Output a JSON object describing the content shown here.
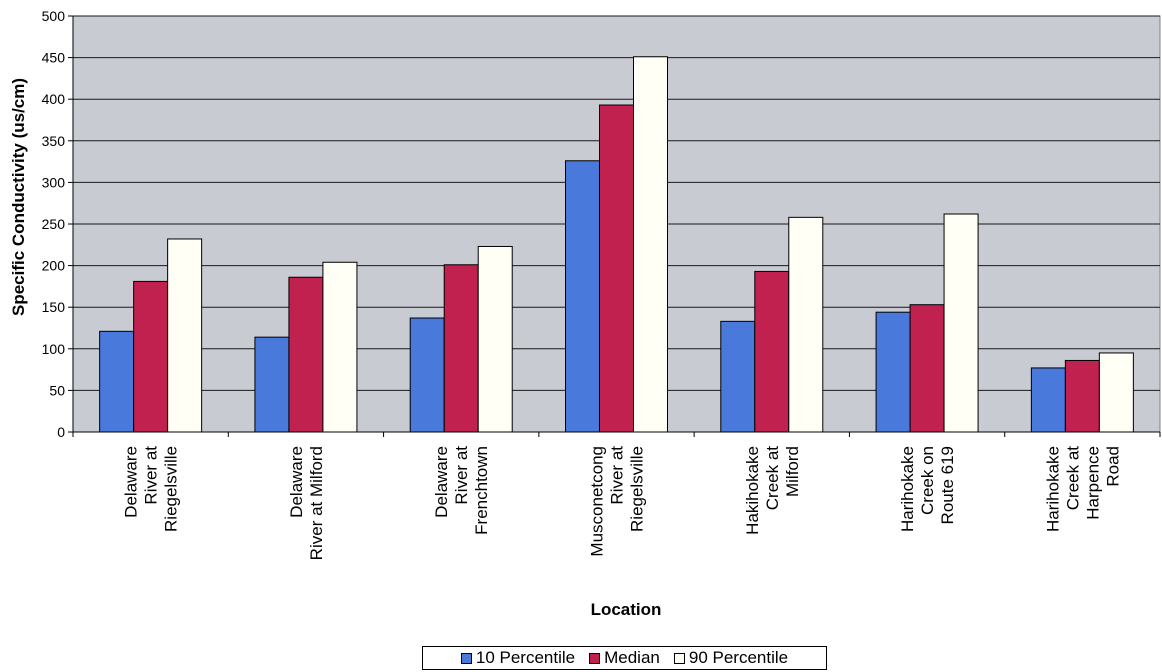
{
  "chart_data": {
    "type": "bar",
    "title": "",
    "xlabel": "Location",
    "ylabel": "Specific Conductivity (us/cm)",
    "ylim": [
      0,
      500
    ],
    "yticks": [
      0,
      50,
      100,
      150,
      200,
      250,
      300,
      350,
      400,
      450,
      500
    ],
    "grid": true,
    "legend_position": "bottom",
    "categories": [
      [
        "Delaware",
        "River at",
        "Riegelsville"
      ],
      [
        "Delaware",
        "River at Milford"
      ],
      [
        "Delaware",
        "River at",
        "Frenchtown"
      ],
      [
        "Musconetcong",
        "River at",
        "Riegelsville"
      ],
      [
        "Hakihokake",
        "Creek at",
        "Milford"
      ],
      [
        "Harihokake",
        "Creek on",
        "Route 619"
      ],
      [
        "Harihokake",
        "Creek at",
        "Harpence",
        "Road"
      ]
    ],
    "series": [
      {
        "name": "10 Percentile",
        "color": "#4a79dc",
        "values": [
          121,
          114,
          137,
          326,
          133,
          144,
          77
        ]
      },
      {
        "name": "Median",
        "color": "#c1214f",
        "values": [
          181,
          186,
          201,
          393,
          193,
          153,
          86
        ]
      },
      {
        "name": "90 Percentile",
        "color": "#fffff5",
        "values": [
          232,
          204,
          223,
          451,
          258,
          262,
          95
        ]
      }
    ],
    "plot_background": "#c8cbd1"
  }
}
